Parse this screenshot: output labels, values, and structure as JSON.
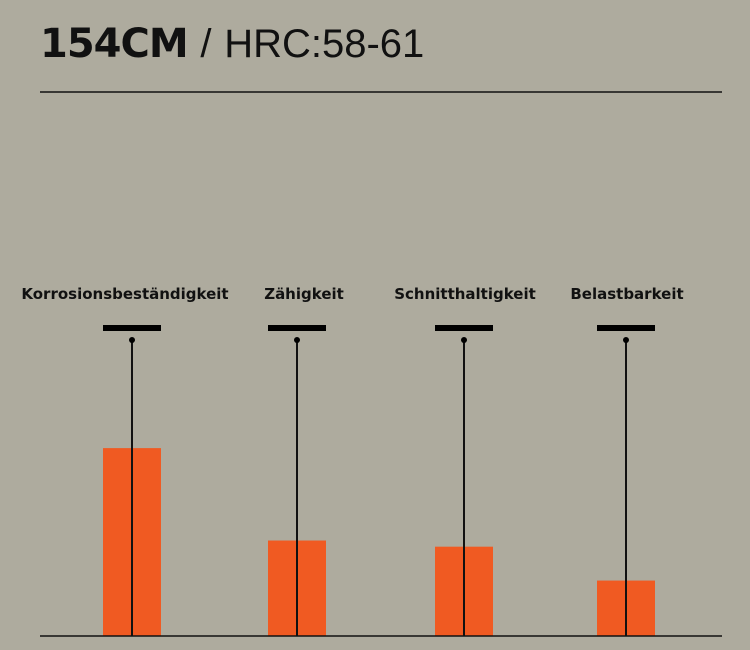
{
  "header": {
    "model": "154CM",
    "separator": "/",
    "hardness": "HRC:58-61"
  },
  "chart_data": {
    "type": "bar",
    "title": "154CM / HRC:58-61",
    "categories": [
      "Korrosionsbeständigkeit",
      "Zähigkeit",
      "Schnitthaltigkeit",
      "Belastbarkeit"
    ],
    "values": [
      61,
      31,
      29,
      18
    ],
    "ylim": [
      0,
      100
    ],
    "grid": false,
    "xlabel": "",
    "ylabel": "",
    "colors": {
      "bar": "#f05a22",
      "background": "#aeab9e",
      "lines": "#111111"
    }
  }
}
